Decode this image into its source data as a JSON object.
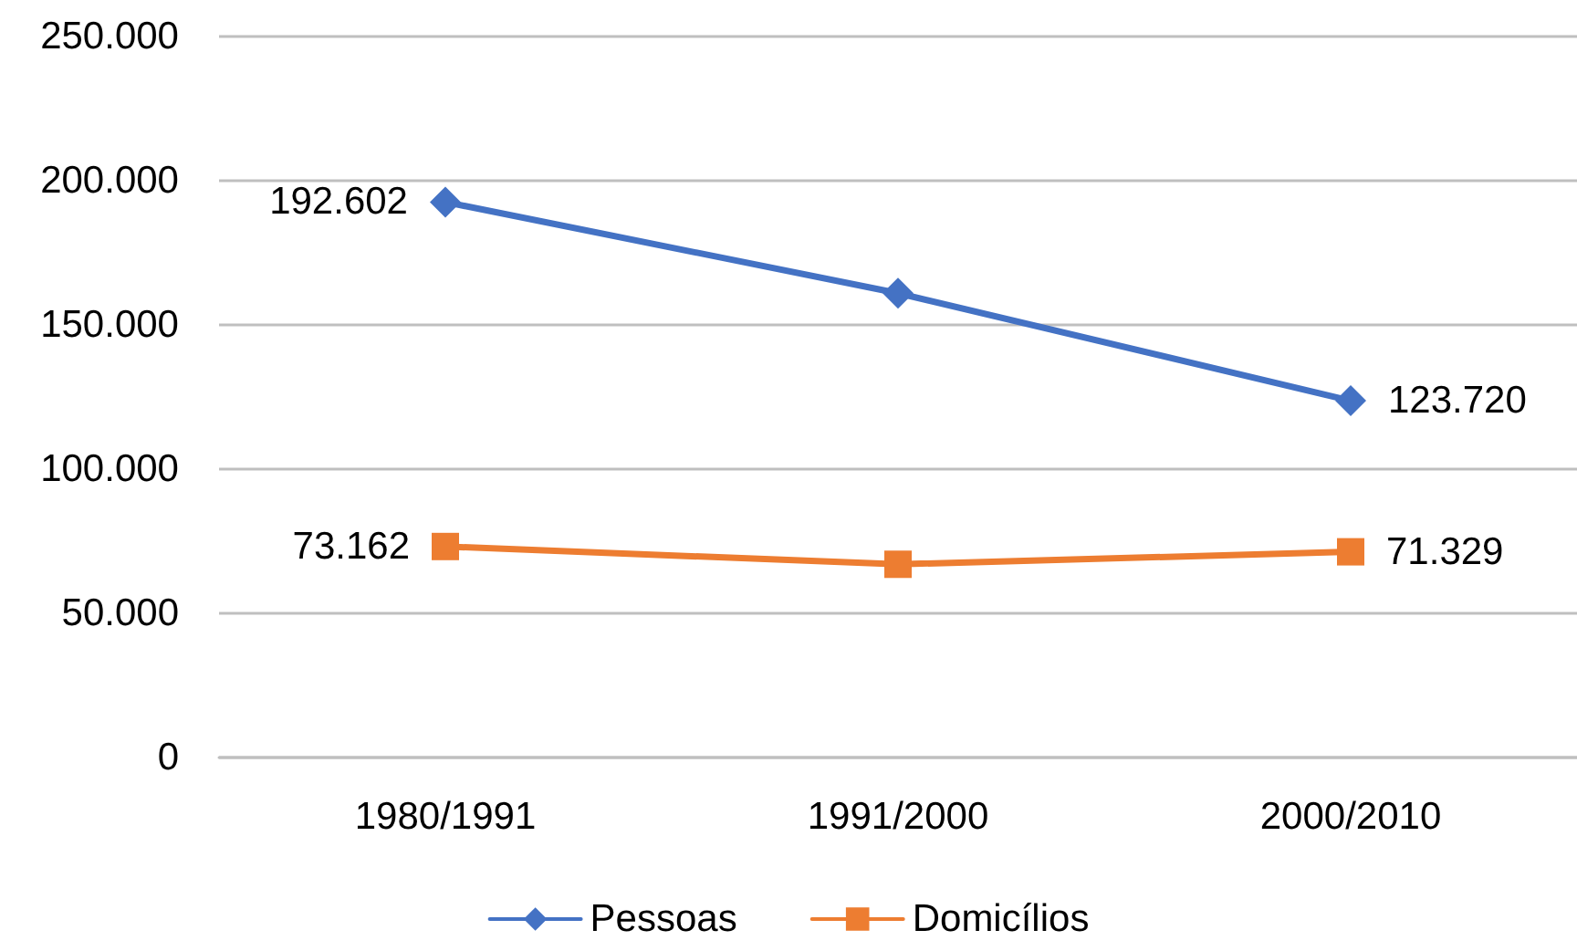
{
  "chart_data": {
    "type": "line",
    "categories": [
      "1980/1991",
      "1991/2000",
      "2000/2010"
    ],
    "series": [
      {
        "name": "Pessoas",
        "color": "#4472c4",
        "marker": "diamond",
        "values": [
          192602,
          161000,
          123720
        ],
        "value_labels": [
          "192.602",
          null,
          "123.720"
        ]
      },
      {
        "name": "Domicílios",
        "color": "#ed7d31",
        "marker": "square",
        "values": [
          73162,
          67000,
          71329
        ],
        "value_labels": [
          "73.162",
          null,
          "71.329"
        ]
      }
    ],
    "ylim": [
      0,
      250000
    ],
    "yticks": [
      0,
      {
        "value": 50000,
        "label": "50.000"
      },
      {
        "value": 100000,
        "label": "100.000"
      },
      {
        "value": 150000,
        "label": "150.000"
      },
      {
        "value": 200000,
        "label": "200.000"
      },
      {
        "value": 250000,
        "label": "250.000"
      }
    ],
    "grid": "y",
    "legend": "bottom",
    "line_style": "solid"
  }
}
